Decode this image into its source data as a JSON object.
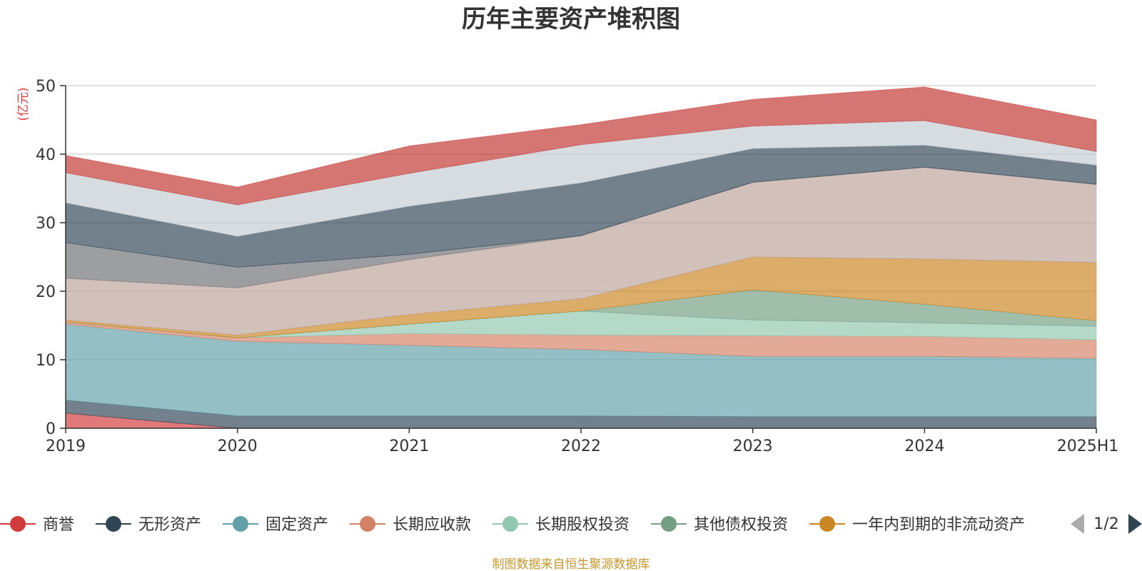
{
  "chart_data": {
    "type": "area",
    "stacked": true,
    "title": "历年主要资产堆积图",
    "unit_label": "(亿元)",
    "categories": [
      "2019",
      "2020",
      "2021",
      "2022",
      "2023",
      "2024",
      "2025H1"
    ],
    "ylim": [
      0,
      50
    ],
    "yticks": [
      0,
      10,
      20,
      30,
      40,
      50
    ],
    "grid": true,
    "legend_position": "bottom",
    "legend_page": "1/2",
    "source": "制图数据来自恒生聚源数据库",
    "series": [
      {
        "name": "商誉",
        "color": "#d23b3b",
        "values": [
          2.2,
          0.0,
          0.0,
          0.0,
          0.0,
          0.0,
          0.0
        ]
      },
      {
        "name": "无形资产",
        "color": "#2f4554",
        "values": [
          1.9,
          1.8,
          1.8,
          1.8,
          1.7,
          1.7,
          1.7
        ]
      },
      {
        "name": "固定资产",
        "color": "#61a0a8",
        "values": [
          11.1,
          10.9,
          10.3,
          9.7,
          8.8,
          8.8,
          8.5
        ]
      },
      {
        "name": "长期应收款",
        "color": "#d48265",
        "values": [
          0.3,
          0.5,
          1.7,
          2.1,
          3.0,
          2.9,
          2.7
        ]
      },
      {
        "name": "长期股权投资",
        "color": "#91c7ae",
        "values": [
          0.0,
          0.0,
          1.4,
          3.5,
          2.3,
          2.0,
          2.0
        ]
      },
      {
        "name": "其他债权投资",
        "color": "#749f83",
        "values": [
          0.0,
          0.0,
          0.0,
          0.0,
          4.4,
          2.7,
          0.8
        ]
      },
      {
        "name": "一年内到期的非流动资产",
        "color": "#ca8622",
        "values": [
          0.3,
          0.4,
          1.4,
          1.8,
          4.8,
          6.6,
          8.5
        ]
      },
      {
        "name": "",
        "color": "#bda29a",
        "values": [
          6.1,
          6.9,
          8.0,
          9.2,
          10.9,
          13.4,
          11.4
        ]
      },
      {
        "name": "",
        "color": "#6e7074",
        "values": [
          5.2,
          3.0,
          0.8,
          0.0,
          0.0,
          0.0,
          0.0
        ]
      },
      {
        "name": "",
        "color": "#2f4554",
        "values": [
          5.8,
          4.5,
          7.0,
          7.7,
          4.9,
          3.2,
          2.8
        ]
      },
      {
        "name": "",
        "color": "#c4ccd3",
        "values": [
          4.4,
          4.6,
          4.8,
          5.6,
          3.3,
          3.6,
          2.0
        ]
      },
      {
        "name": "",
        "color": "#c23531",
        "values": [
          2.5,
          2.6,
          4.0,
          2.9,
          3.9,
          4.9,
          4.6
        ]
      }
    ]
  }
}
